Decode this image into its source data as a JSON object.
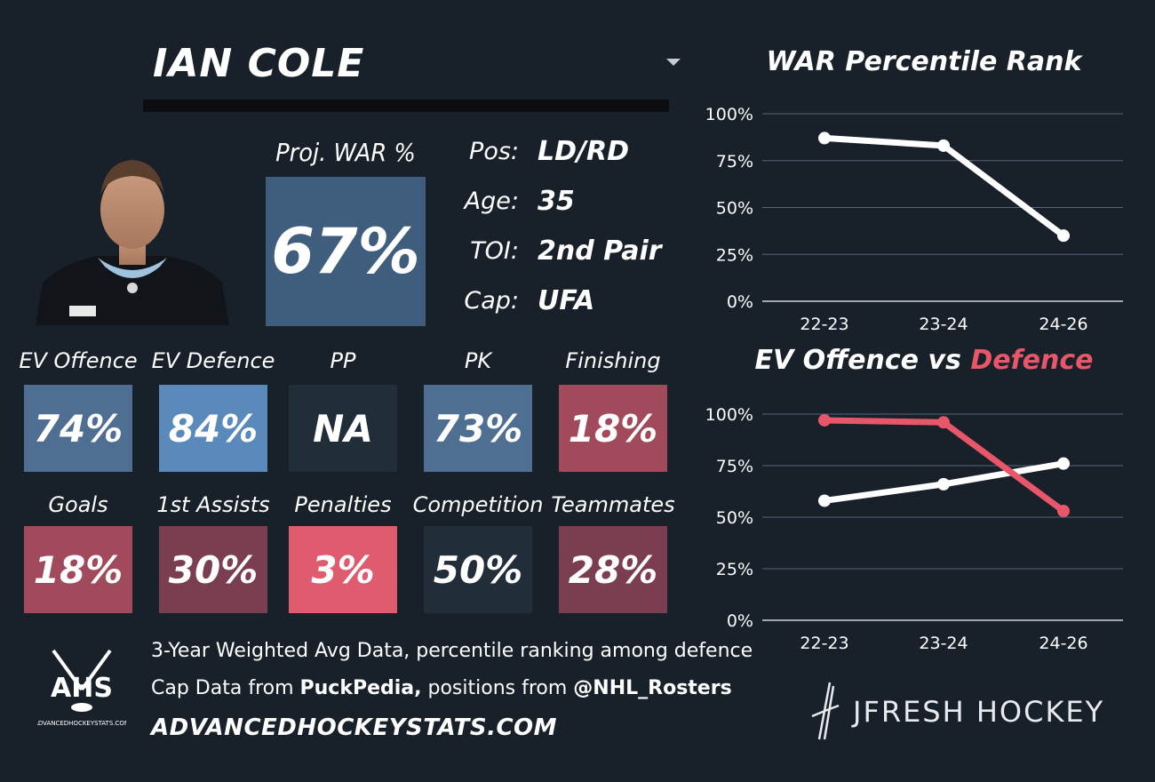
{
  "player": {
    "name": "IAN COLE",
    "proj_war_label": "Proj. WAR %",
    "proj_war_value": "67%",
    "info": [
      {
        "label": "Pos:",
        "value": "LD/RD"
      },
      {
        "label": "Age:",
        "value": "35"
      },
      {
        "label": "TOI:",
        "value": "2nd Pair"
      },
      {
        "label": "Cap:",
        "value": "UFA"
      }
    ]
  },
  "stats": [
    {
      "label": "EV Offence",
      "value": "74%",
      "color": "#4e6f92"
    },
    {
      "label": "EV Defence",
      "value": "84%",
      "color": "#5a89bb"
    },
    {
      "label": "PP",
      "value": "NA",
      "color": "#222d3a"
    },
    {
      "label": "PK",
      "value": "73%",
      "color": "#4e6f92"
    },
    {
      "label": "Finishing",
      "value": "18%",
      "color": "#a04a5c"
    },
    {
      "label": "Goals",
      "value": "18%",
      "color": "#a04a5c"
    },
    {
      "label": "1st Assists",
      "value": "30%",
      "color": "#7b3e50"
    },
    {
      "label": "Penalties",
      "value": "3%",
      "color": "#df5b6e"
    },
    {
      "label": "Competition",
      "value": "50%",
      "color": "#222d3a"
    },
    {
      "label": "Teammates",
      "value": "28%",
      "color": "#7b3e50"
    }
  ],
  "footer": {
    "line1": "3-Year Weighted Avg Data, percentile ranking among defence",
    "line2_prefix": "Cap Data from ",
    "line2_source": "PuckPedia,",
    "line2_mid": " positions from ",
    "line2_handle": "@NHL_Rosters",
    "site": "ADVANCEDHOCKEYSTATS.COM",
    "logo_text": "AHS",
    "logo_sub": "ADVANCEDHOCKEYSTATS.COM",
    "brand": "JFRESH HOCKEY"
  },
  "chart_data": [
    {
      "type": "line",
      "title": "WAR Percentile Rank",
      "categories": [
        "22-23",
        "23-24",
        "24-26"
      ],
      "series": [
        {
          "values": [
            87,
            83,
            35
          ],
          "color": "#ffffff"
        }
      ],
      "yticks": [
        "0%",
        "25%",
        "50%",
        "75%",
        "100%"
      ],
      "ylim": [
        0,
        100
      ],
      "grid": true
    },
    {
      "type": "line",
      "title_part1": "EV Offence vs ",
      "title_part2": "Defence",
      "title_part2_color": "#e8566a",
      "categories": [
        "22-23",
        "23-24",
        "24-26"
      ],
      "series": [
        {
          "values": [
            58,
            66,
            76
          ],
          "color": "#ffffff"
        },
        {
          "values": [
            97,
            96,
            53
          ],
          "color": "#e8566a"
        }
      ],
      "yticks": [
        "0%",
        "25%",
        "50%",
        "75%",
        "100%"
      ],
      "ylim": [
        0,
        100
      ],
      "grid": true
    }
  ]
}
